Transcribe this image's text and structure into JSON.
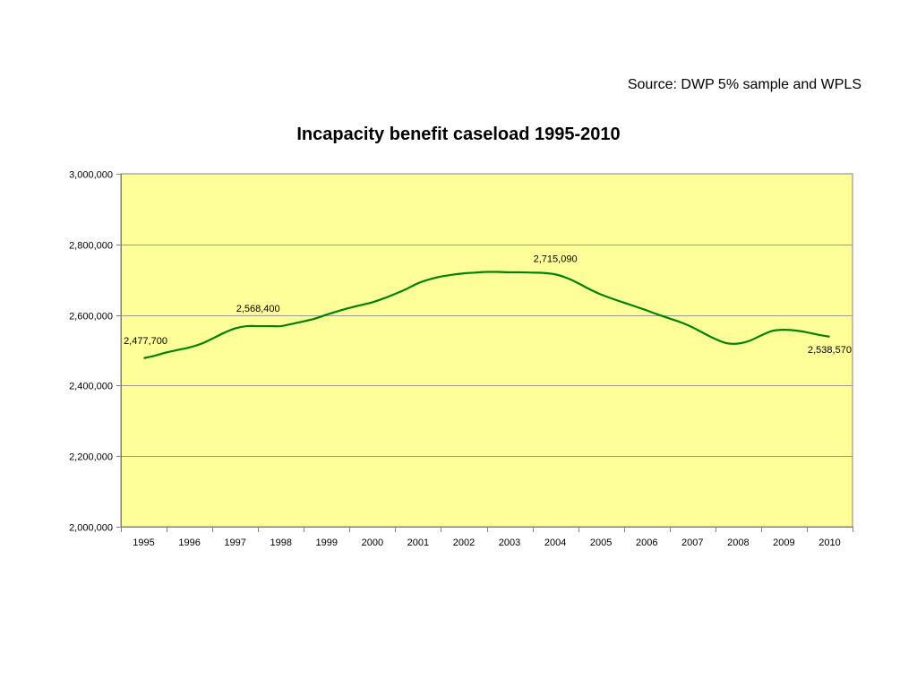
{
  "source_note": "Source: DWP 5% sample and WPLS",
  "chart_data": {
    "type": "line",
    "title": "Incapacity benefit caseload 1995-2010",
    "xlabel": "",
    "ylabel": "",
    "categories": [
      "1995",
      "1996",
      "1997",
      "1998",
      "1999",
      "2000",
      "2001",
      "2002",
      "2003",
      "2004",
      "2005",
      "2006",
      "2007",
      "2008",
      "2009",
      "2010"
    ],
    "ylim": [
      2000000,
      3000000
    ],
    "yticks": [
      {
        "value": 2000000,
        "label": "2,000,000"
      },
      {
        "value": 2200000,
        "label": "2,200,000"
      },
      {
        "value": 2400000,
        "label": "2,400,000"
      },
      {
        "value": 2600000,
        "label": "2,600,000"
      },
      {
        "value": 2800000,
        "label": "2,800,000"
      },
      {
        "value": 3000000,
        "label": "3,000,000"
      }
    ],
    "grid": true,
    "legend": "none",
    "plot_background": "#FFFF99",
    "line_color": "#008000",
    "gridline_color": "#999999",
    "series": [
      {
        "x": [
          1995.0,
          1995.25,
          1995.5,
          1995.75,
          1996.0,
          1996.25,
          1996.5,
          1996.75,
          1997.0,
          1997.25,
          1997.5,
          1997.75,
          1998.0,
          1998.25,
          1998.5,
          1998.75,
          1999.0,
          1999.25,
          1999.5,
          1999.75,
          2000.0,
          2000.25,
          2000.5,
          2000.75,
          2001.0,
          2001.25,
          2001.5,
          2001.75,
          2002.0,
          2002.25,
          2002.5,
          2002.75,
          2003.0,
          2003.25,
          2003.5,
          2003.75,
          2004.0,
          2004.25,
          2004.5,
          2004.75,
          2005.0,
          2005.25,
          2005.5,
          2005.75,
          2006.0,
          2006.25,
          2006.5,
          2006.75,
          2007.0,
          2007.25,
          2007.5,
          2007.75,
          2008.0,
          2008.25,
          2008.5,
          2008.75,
          2009.0,
          2009.25,
          2009.5,
          2009.75,
          2010.0
        ],
        "values": [
          2477700,
          2485000,
          2494000,
          2501000,
          2508000,
          2518000,
          2533000,
          2549000,
          2562000,
          2568400,
          2568400,
          2568400,
          2568400,
          2575000,
          2582000,
          2590000,
          2601000,
          2611000,
          2620000,
          2628000,
          2636000,
          2647000,
          2660000,
          2674000,
          2690000,
          2701000,
          2709000,
          2714000,
          2718000,
          2720000,
          2722000,
          2722000,
          2721000,
          2721000,
          2720000,
          2719000,
          2715090,
          2705000,
          2690000,
          2673000,
          2658000,
          2646000,
          2635000,
          2624000,
          2613000,
          2601000,
          2590000,
          2579000,
          2565000,
          2548000,
          2532000,
          2520000,
          2519000,
          2527000,
          2542000,
          2555000,
          2558000,
          2556000,
          2551000,
          2544000,
          2538570
        ]
      }
    ],
    "data_labels": [
      {
        "x": 1995.0,
        "value": 2477700,
        "label": "2,477,700"
      },
      {
        "x": 1997.5,
        "value": 2568400,
        "label": "2,568,400"
      },
      {
        "x": 2004.0,
        "value": 2715090,
        "label": "2,715,090"
      },
      {
        "x": 2010.0,
        "value": 2538570,
        "label": "2,538,570"
      }
    ]
  }
}
